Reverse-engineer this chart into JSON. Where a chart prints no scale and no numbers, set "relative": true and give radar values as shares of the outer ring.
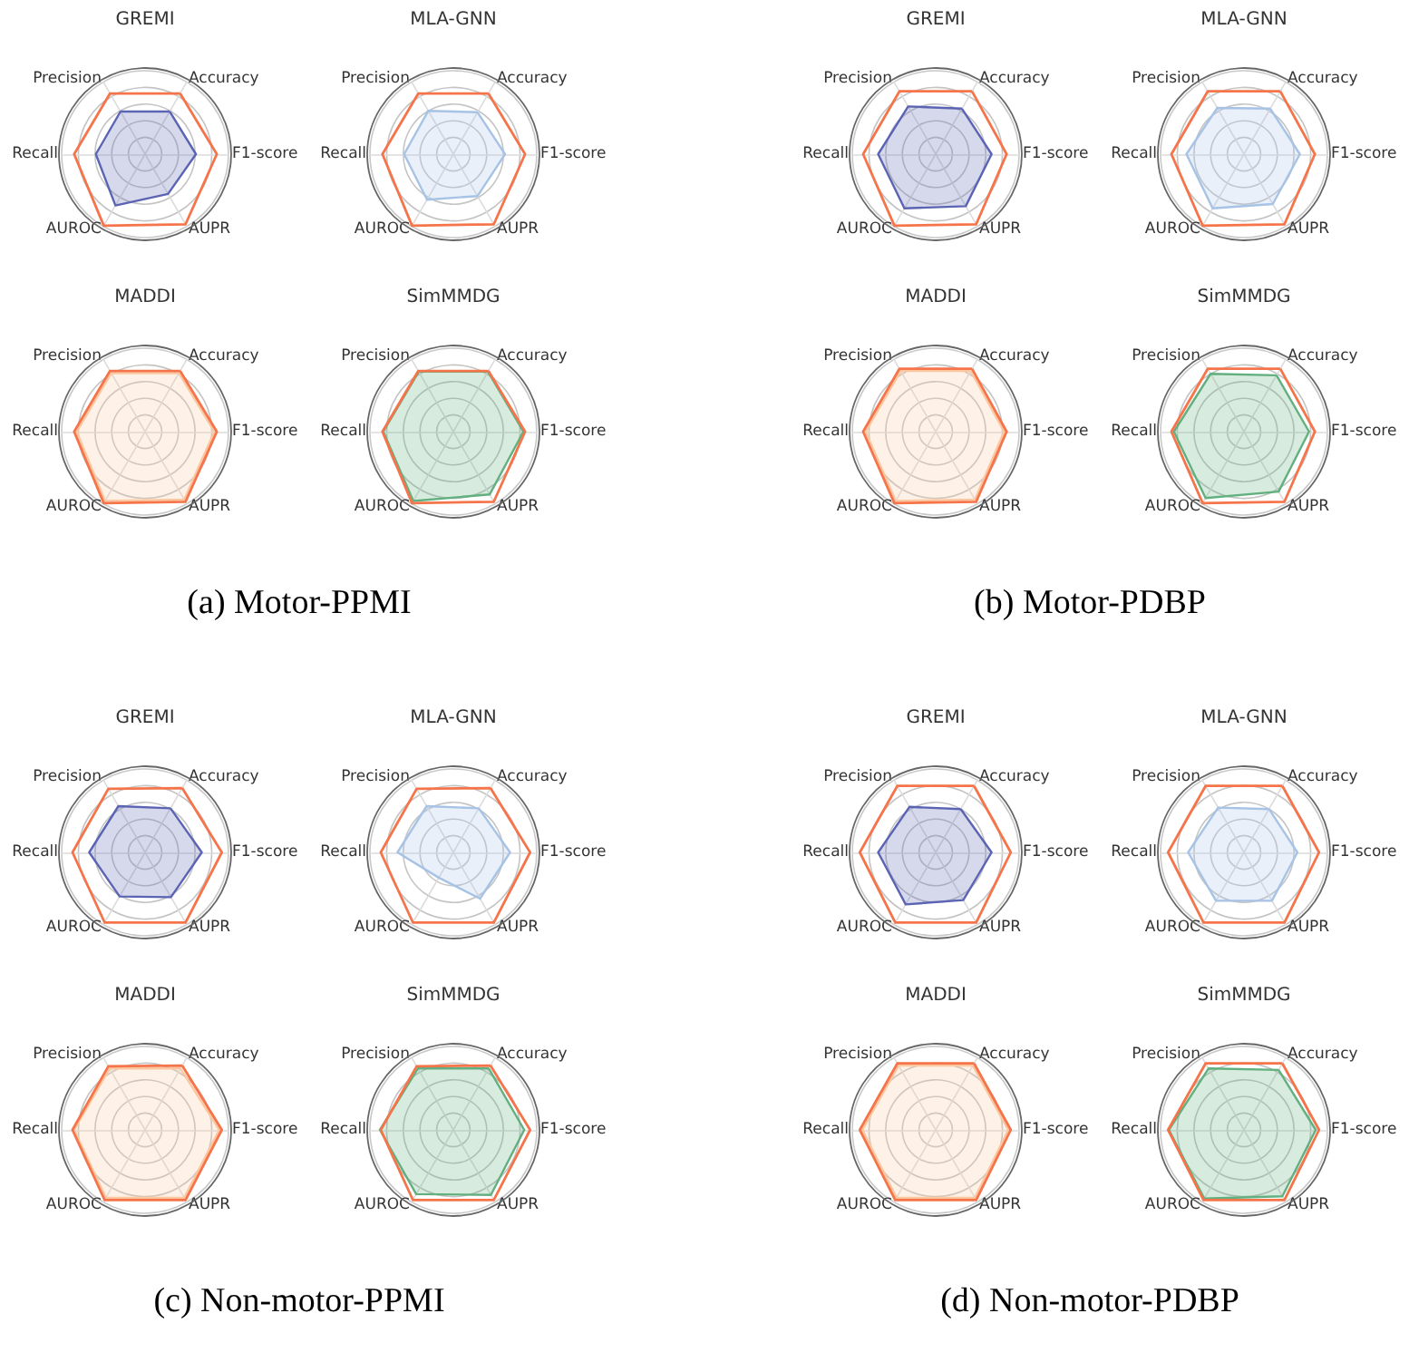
{
  "chart_data": [
    {
      "type": "radar",
      "title": "GREMI",
      "relative": true,
      "grid": true,
      "annotations": [
        "(a) Motor-PPMI"
      ],
      "categories": [
        "Accuracy",
        "F1-score",
        "AUPR",
        "AUROC",
        "Recall",
        "Precision"
      ],
      "series": [
        {
          "type": "area",
          "color": "#5c64b4",
          "values": [
            0.59,
            0.61,
            0.55,
            0.71,
            0.59,
            0.59
          ]
        },
        {
          "color": "#f5744a",
          "values": [
            0.84,
            0.86,
            0.97,
            0.99,
            0.85,
            0.84
          ]
        }
      ]
    },
    {
      "type": "radar",
      "title": "MLA-GNN",
      "relative": true,
      "grid": true,
      "categories": [
        "Accuracy",
        "F1-score",
        "AUPR",
        "AUROC",
        "Recall",
        "Precision"
      ],
      "series": [
        {
          "type": "area",
          "color": "#a7c3e6",
          "values": [
            0.58,
            0.62,
            0.58,
            0.63,
            0.59,
            0.6
          ]
        },
        {
          "color": "#f5744a",
          "values": [
            0.84,
            0.86,
            0.97,
            0.99,
            0.85,
            0.84
          ]
        }
      ]
    },
    {
      "type": "radar",
      "title": "MADDI",
      "relative": true,
      "grid": true,
      "categories": [
        "Accuracy",
        "F1-score",
        "AUPR",
        "AUROC",
        "Recall",
        "Precision"
      ],
      "series": [
        {
          "type": "area",
          "color": "#fcc79f",
          "values": [
            0.81,
            0.83,
            0.94,
            0.96,
            0.82,
            0.81
          ]
        },
        {
          "color": "#f5744a",
          "values": [
            0.84,
            0.86,
            0.97,
            0.99,
            0.85,
            0.84
          ]
        }
      ]
    },
    {
      "type": "radar",
      "title": "SimMMDG",
      "relative": true,
      "grid": true,
      "categories": [
        "Accuracy",
        "F1-score",
        "AUPR",
        "AUROC",
        "Recall",
        "Precision"
      ],
      "series": [
        {
          "type": "area",
          "color": "#62b07f",
          "values": [
            0.83,
            0.84,
            0.87,
            0.96,
            0.84,
            0.83
          ]
        },
        {
          "color": "#f5744a",
          "values": [
            0.84,
            0.86,
            0.97,
            0.99,
            0.85,
            0.84
          ]
        }
      ]
    },
    {
      "type": "radar",
      "title": "GREMI",
      "relative": true,
      "grid": true,
      "annotations": [
        "(b) Motor-PDBP"
      ],
      "categories": [
        "Accuracy",
        "F1-score",
        "AUPR",
        "AUROC",
        "Recall",
        "Precision"
      ],
      "series": [
        {
          "type": "area",
          "color": "#5c64b4",
          "values": [
            0.63,
            0.67,
            0.72,
            0.75,
            0.69,
            0.66
          ]
        },
        {
          "color": "#f5744a",
          "values": [
            0.87,
            0.85,
            0.97,
            0.99,
            0.87,
            0.87
          ]
        }
      ]
    },
    {
      "type": "radar",
      "title": "MLA-GNN",
      "relative": true,
      "grid": true,
      "categories": [
        "Accuracy",
        "F1-score",
        "AUPR",
        "AUROC",
        "Recall",
        "Precision"
      ],
      "series": [
        {
          "type": "area",
          "color": "#a7c3e6",
          "values": [
            0.63,
            0.67,
            0.69,
            0.75,
            0.69,
            0.64
          ]
        },
        {
          "color": "#f5744a",
          "values": [
            0.87,
            0.85,
            0.97,
            0.99,
            0.87,
            0.87
          ]
        }
      ]
    },
    {
      "type": "radar",
      "title": "MADDI",
      "relative": true,
      "grid": true,
      "categories": [
        "Accuracy",
        "F1-score",
        "AUPR",
        "AUROC",
        "Recall",
        "Precision"
      ],
      "series": [
        {
          "type": "area",
          "color": "#fcc79f",
          "values": [
            0.84,
            0.82,
            0.94,
            0.96,
            0.84,
            0.84
          ]
        },
        {
          "color": "#f5744a",
          "values": [
            0.87,
            0.85,
            0.97,
            0.99,
            0.87,
            0.87
          ]
        }
      ]
    },
    {
      "type": "radar",
      "title": "SimMMDG",
      "relative": true,
      "grid": true,
      "categories": [
        "Accuracy",
        "F1-score",
        "AUPR",
        "AUROC",
        "Recall",
        "Precision"
      ],
      "series": [
        {
          "type": "area",
          "color": "#62b07f",
          "values": [
            0.78,
            0.78,
            0.83,
            0.92,
            0.84,
            0.8
          ]
        },
        {
          "color": "#f5744a",
          "values": [
            0.87,
            0.85,
            0.97,
            0.99,
            0.87,
            0.87
          ]
        }
      ]
    },
    {
      "type": "radar",
      "title": "GREMI",
      "relative": true,
      "grid": true,
      "annotations": [
        "(c) Non-motor-PPMI"
      ],
      "categories": [
        "Accuracy",
        "F1-score",
        "AUPR",
        "AUROC",
        "Recall",
        "Precision"
      ],
      "series": [
        {
          "type": "area",
          "color": "#5c64b4",
          "values": [
            0.61,
            0.68,
            0.62,
            0.61,
            0.67,
            0.64
          ]
        },
        {
          "color": "#f5744a",
          "values": [
            0.89,
            0.92,
            0.97,
            0.97,
            0.87,
            0.88
          ]
        }
      ]
    },
    {
      "type": "radar",
      "title": "MLA-GNN",
      "relative": true,
      "grid": true,
      "categories": [
        "Accuracy",
        "F1-score",
        "AUPR",
        "AUROC",
        "Recall",
        "Precision"
      ],
      "series": [
        {
          "type": "area",
          "color": "#a7c3e6",
          "values": [
            0.61,
            0.68,
            0.64,
            0.35,
            0.67,
            0.64
          ]
        },
        {
          "color": "#f5744a",
          "values": [
            0.89,
            0.92,
            0.97,
            0.97,
            0.87,
            0.88
          ]
        }
      ]
    },
    {
      "type": "radar",
      "title": "MADDI",
      "relative": true,
      "grid": true,
      "categories": [
        "Accuracy",
        "F1-score",
        "AUPR",
        "AUROC",
        "Recall",
        "Precision"
      ],
      "series": [
        {
          "type": "area",
          "color": "#fcc79f",
          "values": [
            0.85,
            0.89,
            0.94,
            0.94,
            0.85,
            0.85
          ]
        },
        {
          "color": "#f5744a",
          "values": [
            0.89,
            0.92,
            0.97,
            0.97,
            0.87,
            0.88
          ]
        }
      ]
    },
    {
      "type": "radar",
      "title": "SimMMDG",
      "relative": true,
      "grid": true,
      "categories": [
        "Accuracy",
        "F1-score",
        "AUPR",
        "AUROC",
        "Recall",
        "Precision"
      ],
      "series": [
        {
          "type": "area",
          "color": "#62b07f",
          "values": [
            0.85,
            0.85,
            0.9,
            0.89,
            0.88,
            0.85
          ]
        },
        {
          "color": "#f5744a",
          "values": [
            0.89,
            0.92,
            0.97,
            0.97,
            0.87,
            0.88
          ]
        }
      ]
    },
    {
      "type": "radar",
      "title": "GREMI",
      "relative": true,
      "grid": true,
      "annotations": [
        "(d) Non-motor-PDBP"
      ],
      "categories": [
        "Accuracy",
        "F1-score",
        "AUPR",
        "AUROC",
        "Recall",
        "Precision"
      ],
      "series": [
        {
          "type": "area",
          "color": "#5c64b4",
          "values": [
            0.6,
            0.67,
            0.66,
            0.72,
            0.69,
            0.63
          ]
        },
        {
          "color": "#f5744a",
          "values": [
            0.92,
            0.9,
            0.97,
            0.97,
            0.91,
            0.92
          ]
        }
      ]
    },
    {
      "type": "radar",
      "title": "MLA-GNN",
      "relative": true,
      "grid": true,
      "categories": [
        "Accuracy",
        "F1-score",
        "AUPR",
        "AUROC",
        "Recall",
        "Precision"
      ],
      "series": [
        {
          "type": "area",
          "color": "#a7c3e6",
          "values": [
            0.6,
            0.64,
            0.67,
            0.67,
            0.67,
            0.62
          ]
        },
        {
          "color": "#f5744a",
          "values": [
            0.92,
            0.9,
            0.97,
            0.97,
            0.91,
            0.92
          ]
        }
      ]
    },
    {
      "type": "radar",
      "title": "MADDI",
      "relative": true,
      "grid": true,
      "categories": [
        "Accuracy",
        "F1-score",
        "AUPR",
        "AUROC",
        "Recall",
        "Precision"
      ],
      "series": [
        {
          "type": "area",
          "color": "#fcc79f",
          "values": [
            0.89,
            0.87,
            0.94,
            0.94,
            0.88,
            0.89
          ]
        },
        {
          "color": "#f5744a",
          "values": [
            0.92,
            0.9,
            0.97,
            0.97,
            0.91,
            0.92
          ]
        }
      ]
    },
    {
      "type": "radar",
      "title": "SimMMDG",
      "relative": true,
      "grid": true,
      "categories": [
        "Accuracy",
        "F1-score",
        "AUPR",
        "AUROC",
        "Recall",
        "Precision"
      ],
      "series": [
        {
          "type": "area",
          "color": "#62b07f",
          "values": [
            0.83,
            0.86,
            0.92,
            0.95,
            0.9,
            0.85
          ]
        },
        {
          "color": "#f5744a",
          "values": [
            0.92,
            0.9,
            0.97,
            0.97,
            0.91,
            0.92
          ]
        }
      ]
    }
  ]
}
